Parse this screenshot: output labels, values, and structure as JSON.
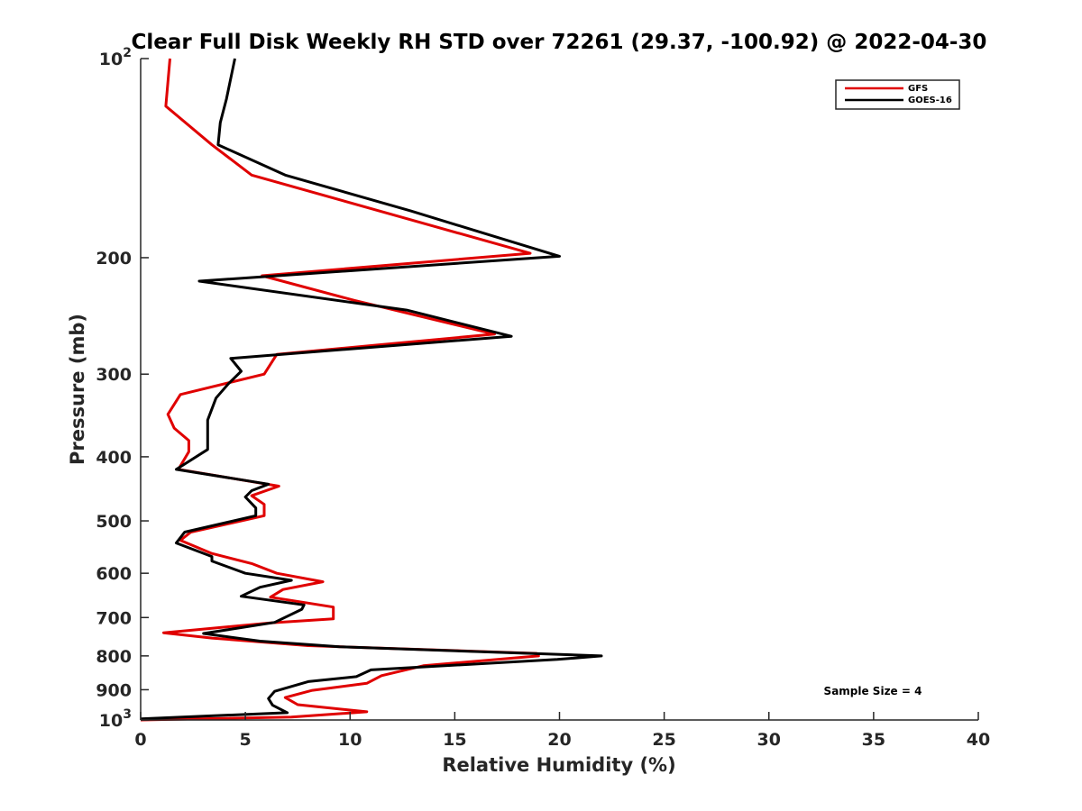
{
  "chart_data": {
    "type": "line",
    "title": "Clear Full Disk Weekly RH STD over 72261 (29.37, -100.92) @ 2022-04-30",
    "xlabel": "Relative Humidity (%)",
    "ylabel": "Pressure (mb)",
    "xlim": [
      0,
      40
    ],
    "ylim": [
      100,
      1000
    ],
    "y_scale": "log",
    "y_reversed": true,
    "x_ticks": [
      "0",
      "5",
      "10",
      "15",
      "20",
      "25",
      "30",
      "35",
      "40"
    ],
    "x_tick_values": [
      0,
      5,
      10,
      15,
      20,
      25,
      30,
      35,
      40
    ],
    "y_ticks": [
      {
        "value": 100,
        "base": "10",
        "exp": "2",
        "label": ""
      },
      {
        "value": 200,
        "base": "",
        "exp": "",
        "label": "200"
      },
      {
        "value": 300,
        "base": "",
        "exp": "",
        "label": "300"
      },
      {
        "value": 400,
        "base": "",
        "exp": "",
        "label": "400"
      },
      {
        "value": 500,
        "base": "",
        "exp": "",
        "label": "500"
      },
      {
        "value": 600,
        "base": "",
        "exp": "",
        "label": "600"
      },
      {
        "value": 700,
        "base": "",
        "exp": "",
        "label": "700"
      },
      {
        "value": 800,
        "base": "",
        "exp": "",
        "label": "800"
      },
      {
        "value": 900,
        "base": "",
        "exp": "",
        "label": "900"
      },
      {
        "value": 1000,
        "base": "10",
        "exp": "3",
        "label": ""
      }
    ],
    "legend_position": "top-right",
    "annotation": "Sample Size = 4",
    "series": [
      {
        "name": "GFS",
        "color": "#e00000",
        "points": [
          [
            1.4,
            100
          ],
          [
            1.2,
            118
          ],
          [
            3.4,
            135
          ],
          [
            5.3,
            150
          ],
          [
            18.6,
            197
          ],
          [
            5.8,
            213
          ],
          [
            10.2,
            232
          ],
          [
            16.9,
            261
          ],
          [
            6.5,
            280
          ],
          [
            5.9,
            300
          ],
          [
            1.9,
            322
          ],
          [
            1.3,
            345
          ],
          [
            1.6,
            362
          ],
          [
            2.3,
            378
          ],
          [
            2.3,
            393
          ],
          [
            1.8,
            418
          ],
          [
            6.6,
            443
          ],
          [
            5.3,
            458
          ],
          [
            5.9,
            472
          ],
          [
            5.9,
            491
          ],
          [
            2.4,
            520
          ],
          [
            1.9,
            535
          ],
          [
            3.4,
            560
          ],
          [
            5.3,
            580
          ],
          [
            6.5,
            600
          ],
          [
            8.7,
            618
          ],
          [
            6.8,
            635
          ],
          [
            6.2,
            652
          ],
          [
            9.2,
            675
          ],
          [
            9.2,
            703
          ],
          [
            6.2,
            713
          ],
          [
            1.1,
            738
          ],
          [
            3.4,
            752
          ],
          [
            8.0,
            772
          ],
          [
            18.9,
            793
          ],
          [
            19.0,
            800
          ],
          [
            13.5,
            828
          ],
          [
            11.5,
            857
          ],
          [
            10.8,
            880
          ],
          [
            8.2,
            902
          ],
          [
            6.9,
            925
          ],
          [
            7.5,
            948
          ],
          [
            10.8,
            972
          ],
          [
            7.2,
            990
          ],
          [
            0,
            1000
          ]
        ]
      },
      {
        "name": "GOES-16",
        "color": "#000000",
        "points": [
          [
            4.5,
            100
          ],
          [
            4.1,
            115
          ],
          [
            3.8,
            125
          ],
          [
            3.7,
            135
          ],
          [
            6.9,
            150
          ],
          [
            12.9,
            170
          ],
          [
            20.0,
            199
          ],
          [
            2.8,
            217
          ],
          [
            12.7,
            240
          ],
          [
            17.7,
            263
          ],
          [
            4.3,
            284
          ],
          [
            4.8,
            297
          ],
          [
            4.2,
            310
          ],
          [
            3.6,
            326
          ],
          [
            3.2,
            352
          ],
          [
            3.2,
            372
          ],
          [
            3.2,
            390
          ],
          [
            1.7,
            418
          ],
          [
            6.1,
            440
          ],
          [
            5.3,
            450
          ],
          [
            5.0,
            460
          ],
          [
            5.5,
            478
          ],
          [
            5.5,
            491
          ],
          [
            2.1,
            520
          ],
          [
            1.7,
            540
          ],
          [
            3.4,
            566
          ],
          [
            3.4,
            575
          ],
          [
            5.0,
            600
          ],
          [
            7.2,
            615
          ],
          [
            5.7,
            630
          ],
          [
            4.8,
            650
          ],
          [
            7.8,
            670
          ],
          [
            7.7,
            680
          ],
          [
            6.4,
            712
          ],
          [
            3.0,
            740
          ],
          [
            5.7,
            760
          ],
          [
            9.5,
            775
          ],
          [
            22.0,
            800
          ],
          [
            19.9,
            810
          ],
          [
            11.0,
            840
          ],
          [
            10.3,
            860
          ],
          [
            8.0,
            875
          ],
          [
            6.4,
            905
          ],
          [
            6.1,
            928
          ],
          [
            6.3,
            950
          ],
          [
            7.0,
            975
          ],
          [
            0,
            996
          ]
        ]
      }
    ]
  },
  "legend": {
    "items": [
      {
        "label": "GFS",
        "color": "#e00000"
      },
      {
        "label": "GOES-16",
        "color": "#000000"
      }
    ]
  }
}
